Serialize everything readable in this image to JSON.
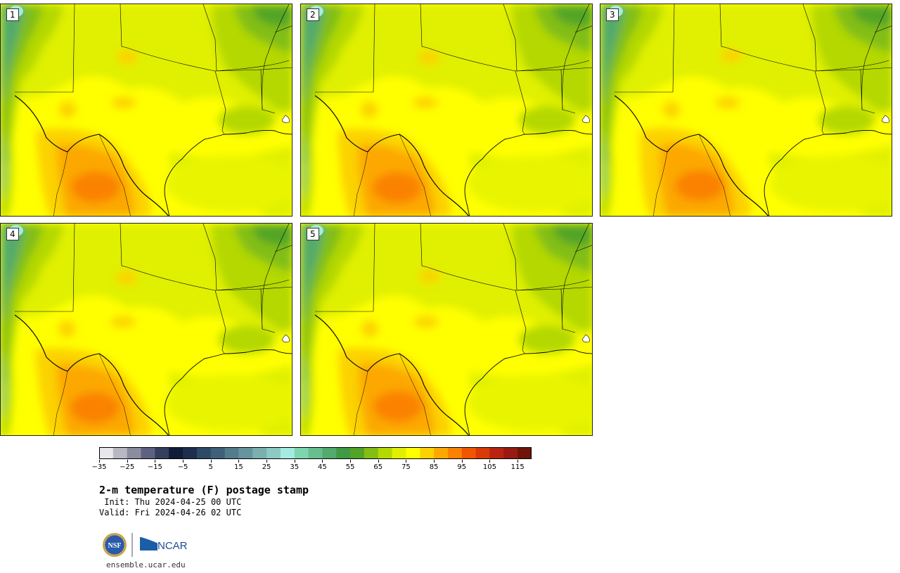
{
  "panels": [
    {
      "label": "1"
    },
    {
      "label": "2"
    },
    {
      "label": "3"
    },
    {
      "label": "4"
    },
    {
      "label": "5"
    }
  ],
  "colorbar": {
    "colors": [
      "#e8e8ec",
      "#b8b8c4",
      "#8c8ca0",
      "#5e6280",
      "#363e5e",
      "#101c38",
      "#1e2e4e",
      "#2e4a66",
      "#3e6078",
      "#527c8c",
      "#65949e",
      "#7ab0b0",
      "#8ccac4",
      "#a4ece0",
      "#7ed6b0",
      "#66c08e",
      "#52aa6c",
      "#3e9a44",
      "#52a428",
      "#82be14",
      "#b4d800",
      "#e0f000",
      "#ffff00",
      "#fcd200",
      "#fca800",
      "#fa8200",
      "#f25500",
      "#d83a08",
      "#b82410",
      "#981a10",
      "#701408"
    ],
    "ticks": [
      "−35",
      "−25",
      "−15",
      "−5",
      "5",
      "15",
      "25",
      "35",
      "45",
      "55",
      "65",
      "75",
      "85",
      "95",
      "105",
      "115"
    ]
  },
  "title": "2-m temperature (F) postage stamp",
  "init_text": " Init: Thu 2024-04-25 00 UTC",
  "valid_text": "Valid: Fri 2024-04-26 02 UTC",
  "logos": {
    "nsf": "NSF",
    "ncar": "NCAR"
  },
  "url": "ensemble.ucar.edu"
}
